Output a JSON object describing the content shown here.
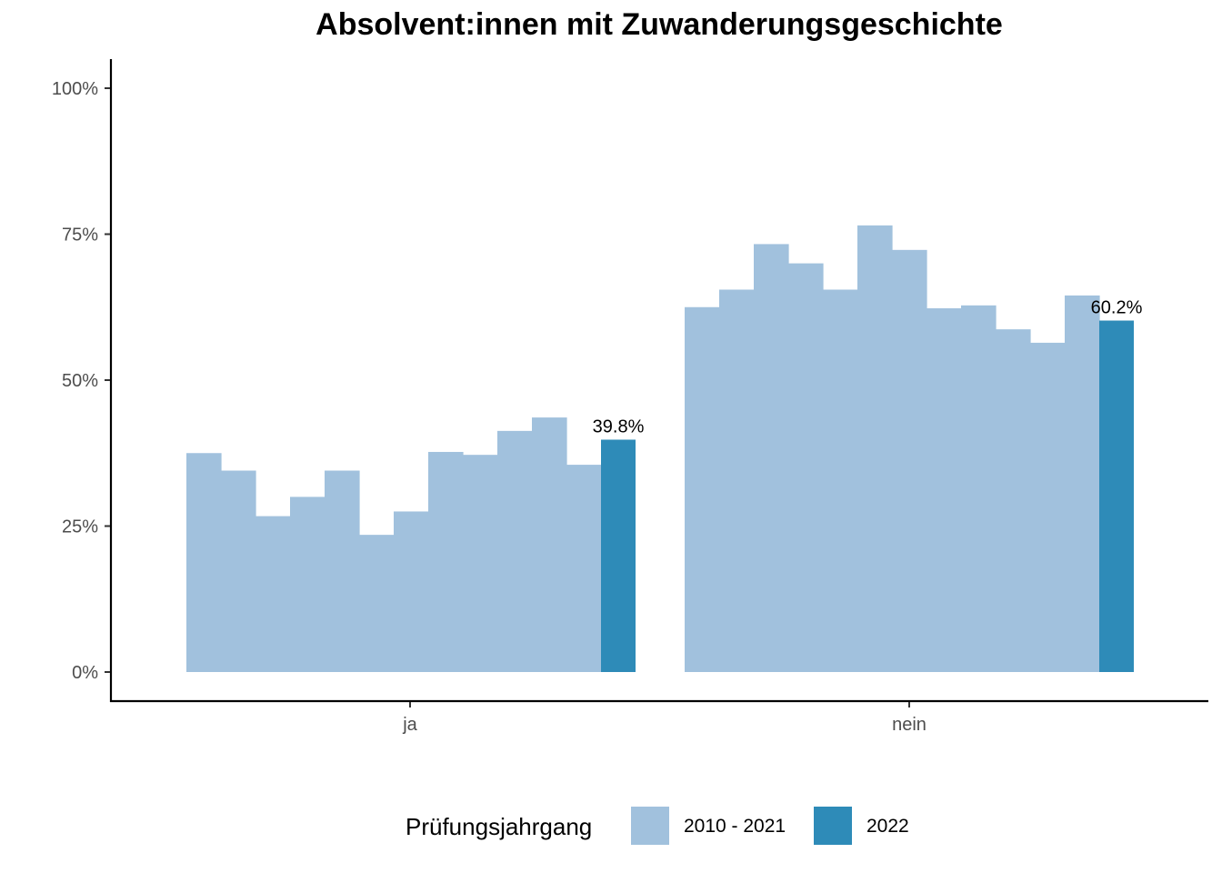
{
  "chart_data": {
    "type": "bar",
    "title": "Absolvent:innen mit Zuwanderungsgeschichte",
    "categories": [
      "ja",
      "nein"
    ],
    "y_ticks": [
      "0%",
      "25%",
      "50%",
      "75%",
      "100%"
    ],
    "ylim": [
      0,
      100
    ],
    "legend_title": "Prüfungsjahrgang",
    "series": [
      {
        "name": "2010 - 2021",
        "color": "#a1c1dd",
        "values": [
          [
            37.5,
            34.5,
            26.7,
            30.0,
            34.5,
            23.5,
            27.5,
            37.7,
            37.2,
            41.3,
            43.6,
            35.5
          ],
          [
            62.5,
            65.5,
            73.3,
            70.0,
            65.5,
            76.5,
            72.3,
            62.3,
            62.8,
            58.7,
            56.4,
            64.5
          ]
        ]
      },
      {
        "name": "2022",
        "color": "#2e8bb8",
        "values": [
          39.8,
          60.2
        ],
        "labels": [
          "39.8%",
          "60.2%"
        ]
      }
    ],
    "grid": false,
    "legend_position": "bottom"
  }
}
